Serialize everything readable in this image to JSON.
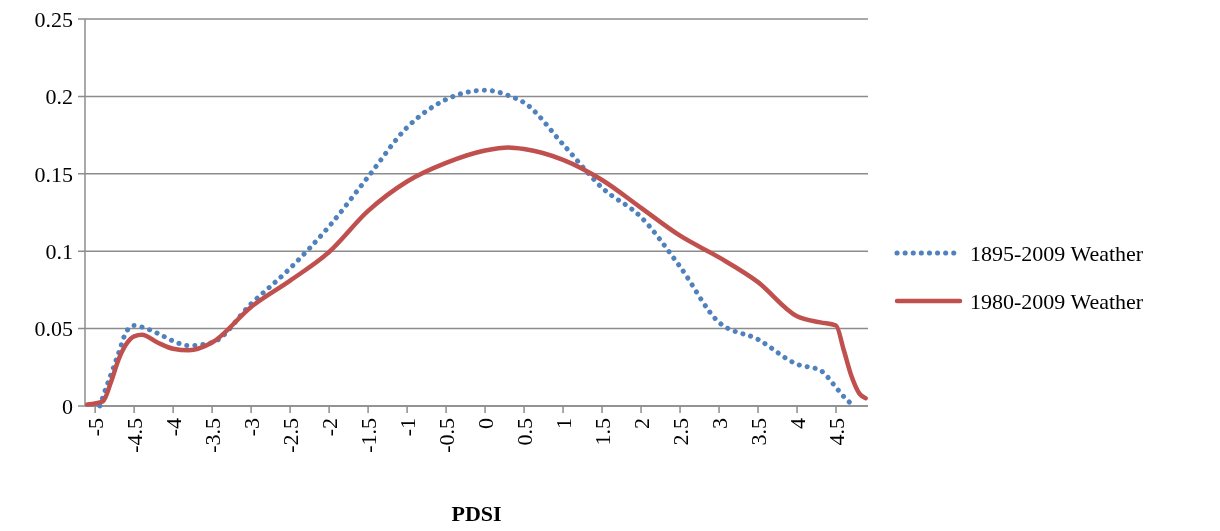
{
  "chart_data": {
    "type": "line",
    "xlabel": "PDSI",
    "xlim": [
      -5.13,
      4.91
    ],
    "ylim": [
      0,
      0.25
    ],
    "xticks": [
      -5,
      -4.5,
      -4,
      -3.5,
      -3,
      -2.5,
      -2,
      -1.5,
      -1,
      -0.5,
      0,
      0.5,
      1,
      1.5,
      2,
      2.5,
      3,
      3.5,
      4,
      4.5
    ],
    "yticks": [
      0,
      0.05,
      0.1,
      0.15,
      0.2,
      0.25
    ],
    "grid": "y",
    "legend": "right",
    "series": [
      {
        "name": "1895-2009 Weather",
        "color": "#4f81bd",
        "line_style": "dotted",
        "x": [
          -4.94,
          -4.9,
          -4.8,
          -4.7,
          -4.6,
          -4.5,
          -4.4,
          -4.2,
          -4,
          -3.8,
          -3.5,
          -3,
          -2.5,
          -2,
          -1.5,
          -1,
          -0.5,
          0,
          0.33,
          0.5,
          1,
          1.5,
          2,
          2.5,
          3,
          3.5,
          4,
          4.3,
          4.5,
          4.6,
          4.73
        ],
        "values": [
          0,
          0.006,
          0.02,
          0.034,
          0.048,
          0.052,
          0.051,
          0.047,
          0.042,
          0.039,
          0.041,
          0.066,
          0.089,
          0.116,
          0.148,
          0.18,
          0.198,
          0.204,
          0.2,
          0.196,
          0.169,
          0.141,
          0.122,
          0.09,
          0.054,
          0.043,
          0.027,
          0.023,
          0.012,
          0.006,
          0
        ]
      },
      {
        "name": "1980-2009 Weather",
        "color": "#c0504d",
        "line_style": "solid",
        "x": [
          -5.1,
          -4.9,
          -4.8,
          -4.7,
          -4.6,
          -4.5,
          -4.4,
          -4.2,
          -4,
          -3.8,
          -3.5,
          -3,
          -2.5,
          -2,
          -1.5,
          -1,
          -0.5,
          0,
          0.3,
          0.5,
          1,
          1.5,
          2,
          2.5,
          3,
          3.5,
          4,
          4.3,
          4.5,
          4.6,
          4.7,
          4.8,
          4.88
        ],
        "values": [
          0.001,
          0.003,
          0.015,
          0.03,
          0.04,
          0.045,
          0.046,
          0.041,
          0.037,
          0.036,
          0.041,
          0.064,
          0.081,
          0.0995,
          0.126,
          0.145,
          0.157,
          0.165,
          0.167,
          0.166,
          0.159,
          0.146,
          0.128,
          0.11,
          0.096,
          0.08,
          0.058,
          0.054,
          0.052,
          0.036,
          0.019,
          0.008,
          0.005
        ]
      }
    ]
  }
}
